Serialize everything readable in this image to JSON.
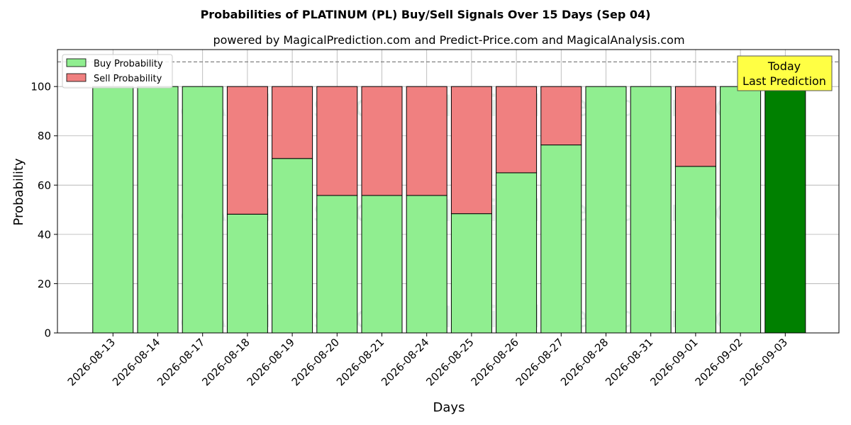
{
  "chart_data": {
    "type": "bar",
    "stacked": true,
    "title": "Probabilities of PLATINUM (PL) Buy/Sell Signals Over 15 Days (Sep 04)",
    "subtitle": "powered by MagicalPrediction.com and Predict-Price.com and MagicalAnalysis.com",
    "xlabel": "Days",
    "ylabel": "Probability",
    "ylim": [
      0,
      115
    ],
    "yticks": [
      0,
      20,
      40,
      60,
      80,
      100
    ],
    "grid": true,
    "legend_position": "top-left",
    "reference_line": 110,
    "categories": [
      "2026-08-13",
      "2026-08-14",
      "2026-08-17",
      "2026-08-18",
      "2026-08-19",
      "2026-08-20",
      "2026-08-21",
      "2026-08-24",
      "2026-08-25",
      "2026-08-26",
      "2026-08-27",
      "2026-08-28",
      "2026-08-31",
      "2026-09-01",
      "2026-09-02",
      "2026-09-03"
    ],
    "series": [
      {
        "name": "Buy Probability",
        "color": "#90ee90",
        "values": [
          100,
          100,
          100,
          48.2,
          70.8,
          55.8,
          55.8,
          55.8,
          48.4,
          65.0,
          76.3,
          100,
          100,
          67.6,
          100,
          100
        ]
      },
      {
        "name": "Sell Probability",
        "color": "#f08080",
        "values": [
          0,
          0,
          0,
          51.8,
          29.2,
          44.2,
          44.2,
          44.2,
          51.6,
          35.0,
          23.7,
          0,
          0,
          32.4,
          0,
          0
        ]
      }
    ],
    "highlight": {
      "index": 15,
      "color": "#008000"
    },
    "annotation": {
      "line1": "Today",
      "line2": "Last Prediction",
      "color": "#ffff44"
    },
    "watermarks": [
      "MagicalAnalysis.com",
      "MagicalPrediction.com"
    ]
  }
}
